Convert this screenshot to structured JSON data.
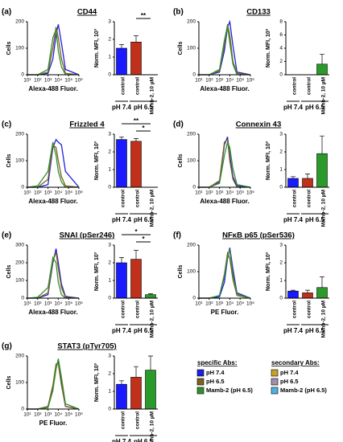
{
  "chart_data": [
    {
      "type": "line",
      "panel": "(a)",
      "title": "CD44",
      "y_label": "Cells",
      "x_label": "Alexa-488 Fluor.",
      "log_x": true,
      "x": [
        10,
        100,
        1000,
        3000,
        6000,
        10000,
        20000,
        50000,
        1000000
      ],
      "xlim": [
        10,
        1000000
      ],
      "xticks": [
        {
          "value": 10,
          "label": "10¹"
        },
        {
          "value": 100,
          "label": "10²"
        },
        {
          "value": 1000,
          "label": "10³"
        },
        {
          "value": 10000,
          "label": "10⁴"
        },
        {
          "value": 100000,
          "label": "10⁵"
        },
        {
          "value": 1000000,
          "label": "10⁶"
        }
      ],
      "ylim": [
        0,
        200
      ],
      "yticks": [
        0,
        100,
        200
      ],
      "series": [
        {
          "color": "#2020e0",
          "values": [
            0,
            0,
            5,
            60,
            150,
            190,
            120,
            20,
            0
          ]
        },
        {
          "color": "#806020",
          "values": [
            0,
            0,
            10,
            100,
            180,
            140,
            60,
            5,
            0
          ]
        },
        {
          "color": "#309030",
          "values": [
            0,
            0,
            20,
            140,
            170,
            90,
            30,
            0,
            0
          ]
        }
      ]
    },
    {
      "type": "bar",
      "y_label": "Norm. MFI, 10³",
      "categories": [
        "control",
        "control",
        "Mamb-2, 10 µM"
      ],
      "groups": [
        "pH 7.4",
        "pH 6.5"
      ],
      "values": [
        1.5,
        1.85,
        0
      ],
      "errors": [
        0.2,
        0.35,
        0
      ],
      "colors": [
        "#1a1aff",
        "#c0301a",
        "#2a9a2a"
      ],
      "ylim": [
        0,
        3
      ],
      "yticks": [
        0,
        1,
        2,
        3
      ],
      "significance": [
        {
          "label": "**",
          "from": 1,
          "to": 2
        }
      ]
    },
    {
      "type": "line",
      "panel": "(b)",
      "title": "CD133",
      "y_label": "Cells",
      "x_label": "Alexa-488 Fluor.",
      "log_x": true,
      "x": [
        10,
        100,
        1000,
        3000,
        6000,
        10000,
        20000,
        50000,
        1000000
      ],
      "xlim": [
        10,
        1000000
      ],
      "xticks": [
        {
          "value": 10,
          "label": "10¹"
        },
        {
          "value": 100,
          "label": "10²"
        },
        {
          "value": 1000,
          "label": "10³"
        },
        {
          "value": 10000,
          "label": "10⁴"
        },
        {
          "value": 100000,
          "label": "10⁵"
        },
        {
          "value": 1000000,
          "label": "10⁶"
        }
      ],
      "ylim": [
        0,
        200
      ],
      "yticks": [
        0,
        100,
        200
      ],
      "series": [
        {
          "color": "#2020e0",
          "values": [
            0,
            0,
            10,
            90,
            180,
            200,
            110,
            10,
            0
          ]
        },
        {
          "color": "#806020",
          "values": [
            0,
            0,
            15,
            110,
            190,
            150,
            50,
            5,
            0
          ]
        },
        {
          "color": "#309030",
          "values": [
            0,
            0,
            20,
            130,
            185,
            120,
            40,
            0,
            0
          ]
        }
      ]
    },
    {
      "type": "bar",
      "y_label": "Norm. MFI, 10³",
      "categories": [
        "control",
        "control",
        "Mamb-2, 10 µM"
      ],
      "groups": [
        "pH 7.4",
        "pH 6.5"
      ],
      "values": [
        0,
        0,
        1.6
      ],
      "errors": [
        0,
        0,
        1.5
      ],
      "colors": [
        "#1a1aff",
        "#c0301a",
        "#2a9a2a"
      ],
      "ylim": [
        0,
        8
      ],
      "yticks": [
        0,
        2,
        4,
        6,
        8
      ],
      "significance": []
    },
    {
      "type": "line",
      "panel": "(c)",
      "title": "Frizzled 4",
      "y_label": "Cells",
      "x_label": "Alexa-488 Fluor.",
      "log_x": true,
      "x": [
        10,
        100,
        1000,
        3000,
        6000,
        10000,
        20000,
        50000,
        1000000
      ],
      "xlim": [
        10,
        1000000
      ],
      "xticks": [
        {
          "value": 10,
          "label": "10¹"
        },
        {
          "value": 100,
          "label": "10²"
        },
        {
          "value": 1000,
          "label": "10³"
        },
        {
          "value": 10000,
          "label": "10⁴"
        },
        {
          "value": 100000,
          "label": "10⁵"
        },
        {
          "value": 1000000,
          "label": "10⁶"
        }
      ],
      "ylim": [
        0,
        200
      ],
      "yticks": [
        0,
        100,
        200
      ],
      "series": [
        {
          "color": "#2020e0",
          "values": [
            0,
            0,
            10,
            150,
            180,
            170,
            160,
            60,
            0
          ]
        },
        {
          "color": "#806020",
          "values": [
            0,
            0,
            30,
            160,
            150,
            100,
            40,
            5,
            0
          ]
        },
        {
          "color": "#309030",
          "values": [
            0,
            5,
            60,
            170,
            120,
            60,
            20,
            0,
            0
          ]
        }
      ]
    },
    {
      "type": "bar",
      "y_label": "Norm. MFI, 10³",
      "categories": [
        "control",
        "control",
        "Mamb-2, 10 µM"
      ],
      "groups": [
        "pH 7.4",
        "pH 6.5"
      ],
      "values": [
        2.7,
        2.6,
        0
      ],
      "errors": [
        0.15,
        0.15,
        0
      ],
      "colors": [
        "#1a1aff",
        "#c0301a",
        "#2a9a2a"
      ],
      "ylim": [
        0,
        3
      ],
      "yticks": [
        0,
        1,
        2,
        3
      ],
      "significance": [
        {
          "label": "*",
          "from": 1,
          "to": 2
        },
        {
          "label": "**",
          "from": 0,
          "to": 2
        }
      ]
    },
    {
      "type": "line",
      "panel": "(d)",
      "title": "Connexin 43",
      "y_label": "Cells",
      "x_label": "Alexa-488 Fluor.",
      "log_x": true,
      "x": [
        10,
        100,
        1000,
        3000,
        6000,
        10000,
        20000,
        50000,
        1000000
      ],
      "xlim": [
        10,
        1000000
      ],
      "xticks": [
        {
          "value": 10,
          "label": "10¹"
        },
        {
          "value": 100,
          "label": "10²"
        },
        {
          "value": 1000,
          "label": "10³"
        },
        {
          "value": 10000,
          "label": "10⁴"
        },
        {
          "value": 100000,
          "label": "10⁵"
        },
        {
          "value": 1000000,
          "label": "10⁶"
        }
      ],
      "ylim": [
        0,
        200
      ],
      "yticks": [
        0,
        100,
        200
      ],
      "series": [
        {
          "color": "#2020e0",
          "values": [
            0,
            0,
            20,
            160,
            190,
            120,
            40,
            5,
            0
          ]
        },
        {
          "color": "#806020",
          "values": [
            0,
            0,
            25,
            170,
            180,
            100,
            30,
            0,
            0
          ]
        },
        {
          "color": "#309030",
          "values": [
            0,
            0,
            15,
            120,
            170,
            150,
            70,
            10,
            0
          ]
        }
      ]
    },
    {
      "type": "bar",
      "y_label": "Norm. MFI, 10³",
      "categories": [
        "control",
        "control",
        "Mamb-2, 10 µM"
      ],
      "groups": [
        "pH 7.4",
        "pH 6.5"
      ],
      "values": [
        0.5,
        0.5,
        1.9
      ],
      "errors": [
        0.1,
        0.25,
        1.0
      ],
      "colors": [
        "#1a1aff",
        "#c0301a",
        "#2a9a2a"
      ],
      "ylim": [
        0,
        3
      ],
      "yticks": [
        0,
        1,
        2,
        3
      ],
      "significance": []
    },
    {
      "type": "line",
      "panel": "(e)",
      "title": "SNAI (pSer246)",
      "y_label": "Cells",
      "x_label": "Alexa-488 Fluor.",
      "log_x": true,
      "x": [
        10,
        100,
        1000,
        3000,
        6000,
        10000,
        20000,
        50000,
        1000000
      ],
      "xlim": [
        10,
        1000000
      ],
      "xticks": [
        {
          "value": 10,
          "label": "10¹"
        },
        {
          "value": 100,
          "label": "10²"
        },
        {
          "value": 1000,
          "label": "10³"
        },
        {
          "value": 10000,
          "label": "10⁴"
        },
        {
          "value": 100000,
          "label": "10⁵"
        },
        {
          "value": 1000000,
          "label": "10⁶"
        }
      ],
      "ylim": [
        0,
        300
      ],
      "yticks": [
        0,
        100,
        200,
        300
      ],
      "series": [
        {
          "color": "#2020e0",
          "values": [
            0,
            0,
            20,
            200,
            280,
            200,
            80,
            10,
            0
          ]
        },
        {
          "color": "#806020",
          "values": [
            0,
            0,
            30,
            210,
            260,
            170,
            60,
            5,
            0
          ]
        },
        {
          "color": "#309030",
          "values": [
            0,
            5,
            60,
            230,
            200,
            90,
            20,
            0,
            0
          ]
        }
      ]
    },
    {
      "type": "bar",
      "y_label": "Norm. MFI, 10³",
      "categories": [
        "control",
        "control",
        "Mamb-2, 10 µM"
      ],
      "groups": [
        "pH 7.4",
        "pH 6.5"
      ],
      "values": [
        2.0,
        2.2,
        0.2
      ],
      "errors": [
        0.3,
        0.5,
        0.05
      ],
      "colors": [
        "#1a1aff",
        "#c0301a",
        "#2a9a2a"
      ],
      "ylim": [
        0,
        3
      ],
      "yticks": [
        0,
        1,
        2,
        3
      ],
      "significance": [
        {
          "label": "*",
          "from": 1,
          "to": 2
        },
        {
          "label": "*",
          "from": 0,
          "to": 2
        }
      ]
    },
    {
      "type": "line",
      "panel": "(f)",
      "title": "NFκB  p65 (pSer536)",
      "y_label": "Cells",
      "x_label": "PE Fluor.",
      "log_x": true,
      "x": [
        10,
        100,
        1000,
        3000,
        6000,
        10000,
        20000,
        50000,
        1000000
      ],
      "xlim": [
        10,
        1000000
      ],
      "xticks": [
        {
          "value": 10,
          "label": "10¹"
        },
        {
          "value": 100,
          "label": "10²"
        },
        {
          "value": 1000,
          "label": "10³"
        },
        {
          "value": 10000,
          "label": "10⁴"
        },
        {
          "value": 100000,
          "label": "10⁵"
        },
        {
          "value": 1000000,
          "label": "10⁶"
        }
      ],
      "ylim": [
        0,
        200
      ],
      "yticks": [
        0,
        100,
        200
      ],
      "series": [
        {
          "color": "#2020e0",
          "values": [
            0,
            0,
            5,
            60,
            150,
            190,
            110,
            20,
            0
          ]
        },
        {
          "color": "#806020",
          "values": [
            0,
            0,
            10,
            90,
            170,
            150,
            70,
            10,
            0
          ]
        },
        {
          "color": "#309030",
          "values": [
            0,
            0,
            10,
            80,
            160,
            180,
            90,
            15,
            0
          ]
        }
      ]
    },
    {
      "type": "bar",
      "y_label": "Norm. MFI, 10³",
      "categories": [
        "control",
        "control",
        "Mamb-2, 10 µM"
      ],
      "groups": [
        "pH 7.4",
        "pH 6.5"
      ],
      "values": [
        0.4,
        0.3,
        0.6
      ],
      "errors": [
        0.05,
        0.15,
        0.6
      ],
      "colors": [
        "#1a1aff",
        "#c0301a",
        "#2a9a2a"
      ],
      "ylim": [
        0,
        3
      ],
      "yticks": [
        0,
        1,
        2,
        3
      ],
      "significance": []
    },
    {
      "type": "line",
      "panel": "(g)",
      "title": "STAT3 (pTyr705)",
      "y_label": "Cells",
      "x_label": "PE Fluor.",
      "log_x": true,
      "x": [
        10,
        100,
        1000,
        3000,
        6000,
        10000,
        20000,
        50000,
        1000000
      ],
      "xlim": [
        10,
        1000000
      ],
      "xticks": [
        {
          "value": 10,
          "label": "10¹"
        },
        {
          "value": 100,
          "label": "10²"
        },
        {
          "value": 1000,
          "label": "10³"
        },
        {
          "value": 10000,
          "label": "10⁴"
        },
        {
          "value": 100000,
          "label": "10⁵"
        },
        {
          "value": 1000000,
          "label": "10⁶"
        }
      ],
      "ylim": [
        0,
        200
      ],
      "yticks": [
        0,
        100,
        200
      ],
      "series": [
        {
          "color": "#2020e0",
          "values": [
            0,
            0,
            10,
            80,
            160,
            180,
            100,
            10,
            0
          ]
        },
        {
          "color": "#806020",
          "values": [
            0,
            0,
            10,
            90,
            170,
            170,
            90,
            10,
            0
          ]
        },
        {
          "color": "#309030",
          "values": [
            0,
            0,
            5,
            70,
            150,
            190,
            120,
            20,
            0
          ]
        }
      ]
    },
    {
      "type": "bar",
      "y_label": "Norm. MFI, 10³",
      "categories": [
        "control",
        "control",
        "Mamb-2, 10 µM"
      ],
      "groups": [
        "pH 7.4",
        "pH 6.5"
      ],
      "values": [
        1.4,
        1.8,
        2.2
      ],
      "errors": [
        0.2,
        0.6,
        0.8
      ],
      "colors": [
        "#1a1aff",
        "#c0301a",
        "#2a9a2a"
      ],
      "ylim": [
        0,
        3
      ],
      "yticks": [
        0,
        1,
        2,
        3
      ],
      "significance": []
    }
  ],
  "legend": {
    "groups": [
      {
        "title": "specific Abs:",
        "items": [
          {
            "name": "pH 7.4",
            "color": "#2020e0"
          },
          {
            "name": "pH 6.5",
            "color": "#806020"
          },
          {
            "name": "Mamb-2 (pH 6.5)",
            "color": "#309030"
          }
        ]
      },
      {
        "title": "secondary Abs:",
        "items": [
          {
            "name": "pH 7.4",
            "color": "#c8a02a"
          },
          {
            "name": "pH 6.5",
            "color": "#a090a8"
          },
          {
            "name": "Mamb-2 (pH 6.5)",
            "color": "#50b0e0"
          }
        ]
      }
    ]
  }
}
